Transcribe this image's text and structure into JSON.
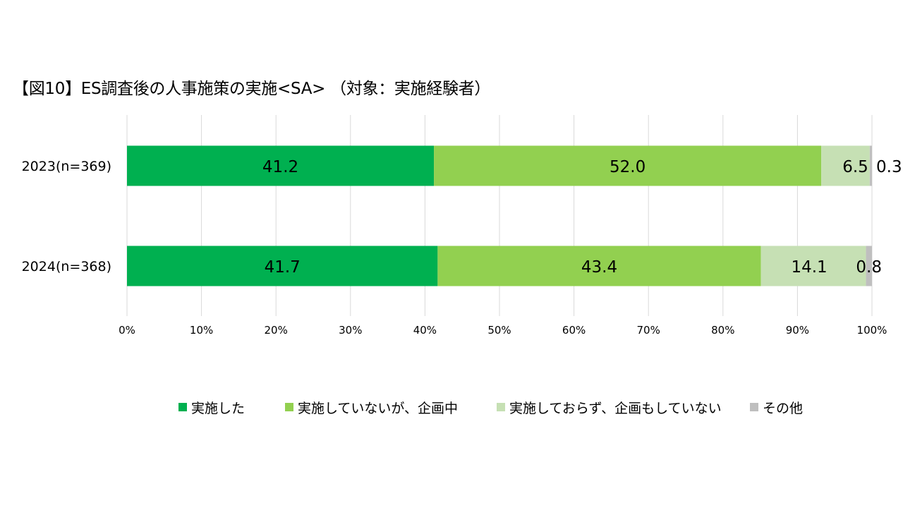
{
  "title": "【図10】ES調査後の人事施策の実施<SA> （対象：実施経験者）",
  "chart_data": {
    "type": "bar",
    "orientation": "horizontal",
    "stacked": true,
    "categories": [
      "2023(n=369)",
      "2024(n=368)"
    ],
    "series": [
      {
        "name": "実施した",
        "color": "#00b050",
        "values": [
          41.2,
          41.7
        ]
      },
      {
        "name": "実施していないが、企画中",
        "color": "#92d050",
        "values": [
          52.0,
          43.4
        ]
      },
      {
        "name": "実施しておらず、企画もしていない",
        "color": "#c6e0b4",
        "values": [
          6.5,
          14.1
        ]
      },
      {
        "name": "その他",
        "color": "#bfbfbf",
        "values": [
          0.3,
          0.8
        ]
      }
    ],
    "data_labels": [
      [
        "41.2",
        "52.0",
        "6.5",
        "0.3"
      ],
      [
        "41.7",
        "43.4",
        "14.1",
        "0.8"
      ]
    ],
    "xlim": [
      0,
      100
    ],
    "x_ticks": [
      "0%",
      "10%",
      "20%",
      "30%",
      "40%",
      "50%",
      "60%",
      "70%",
      "80%",
      "90%",
      "100%"
    ],
    "grid": true,
    "legend_position": "bottom"
  }
}
